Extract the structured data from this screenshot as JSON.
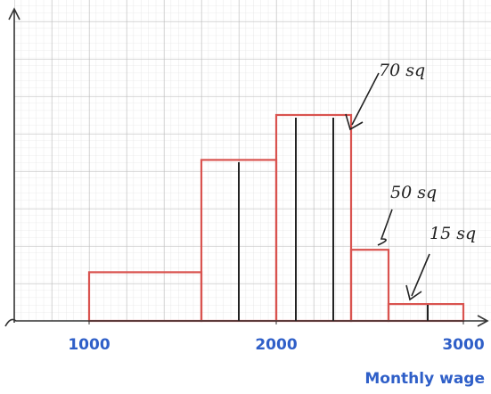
{
  "chart_data": {
    "type": "histogram",
    "bins": [
      1000,
      1600,
      2000,
      2400,
      2600,
      3000
    ],
    "values": [
      1.3,
      4.3,
      5.5,
      1.9,
      0.45
    ],
    "color": "#d9534f",
    "xlim": [
      600,
      3100
    ],
    "xticks": [
      1000,
      2000,
      3000
    ],
    "ylim": [
      0,
      8.3
    ],
    "x_label": "Monthly wage",
    "annotations": [
      "70 sq",
      "50 sq",
      "15 sq"
    ]
  }
}
